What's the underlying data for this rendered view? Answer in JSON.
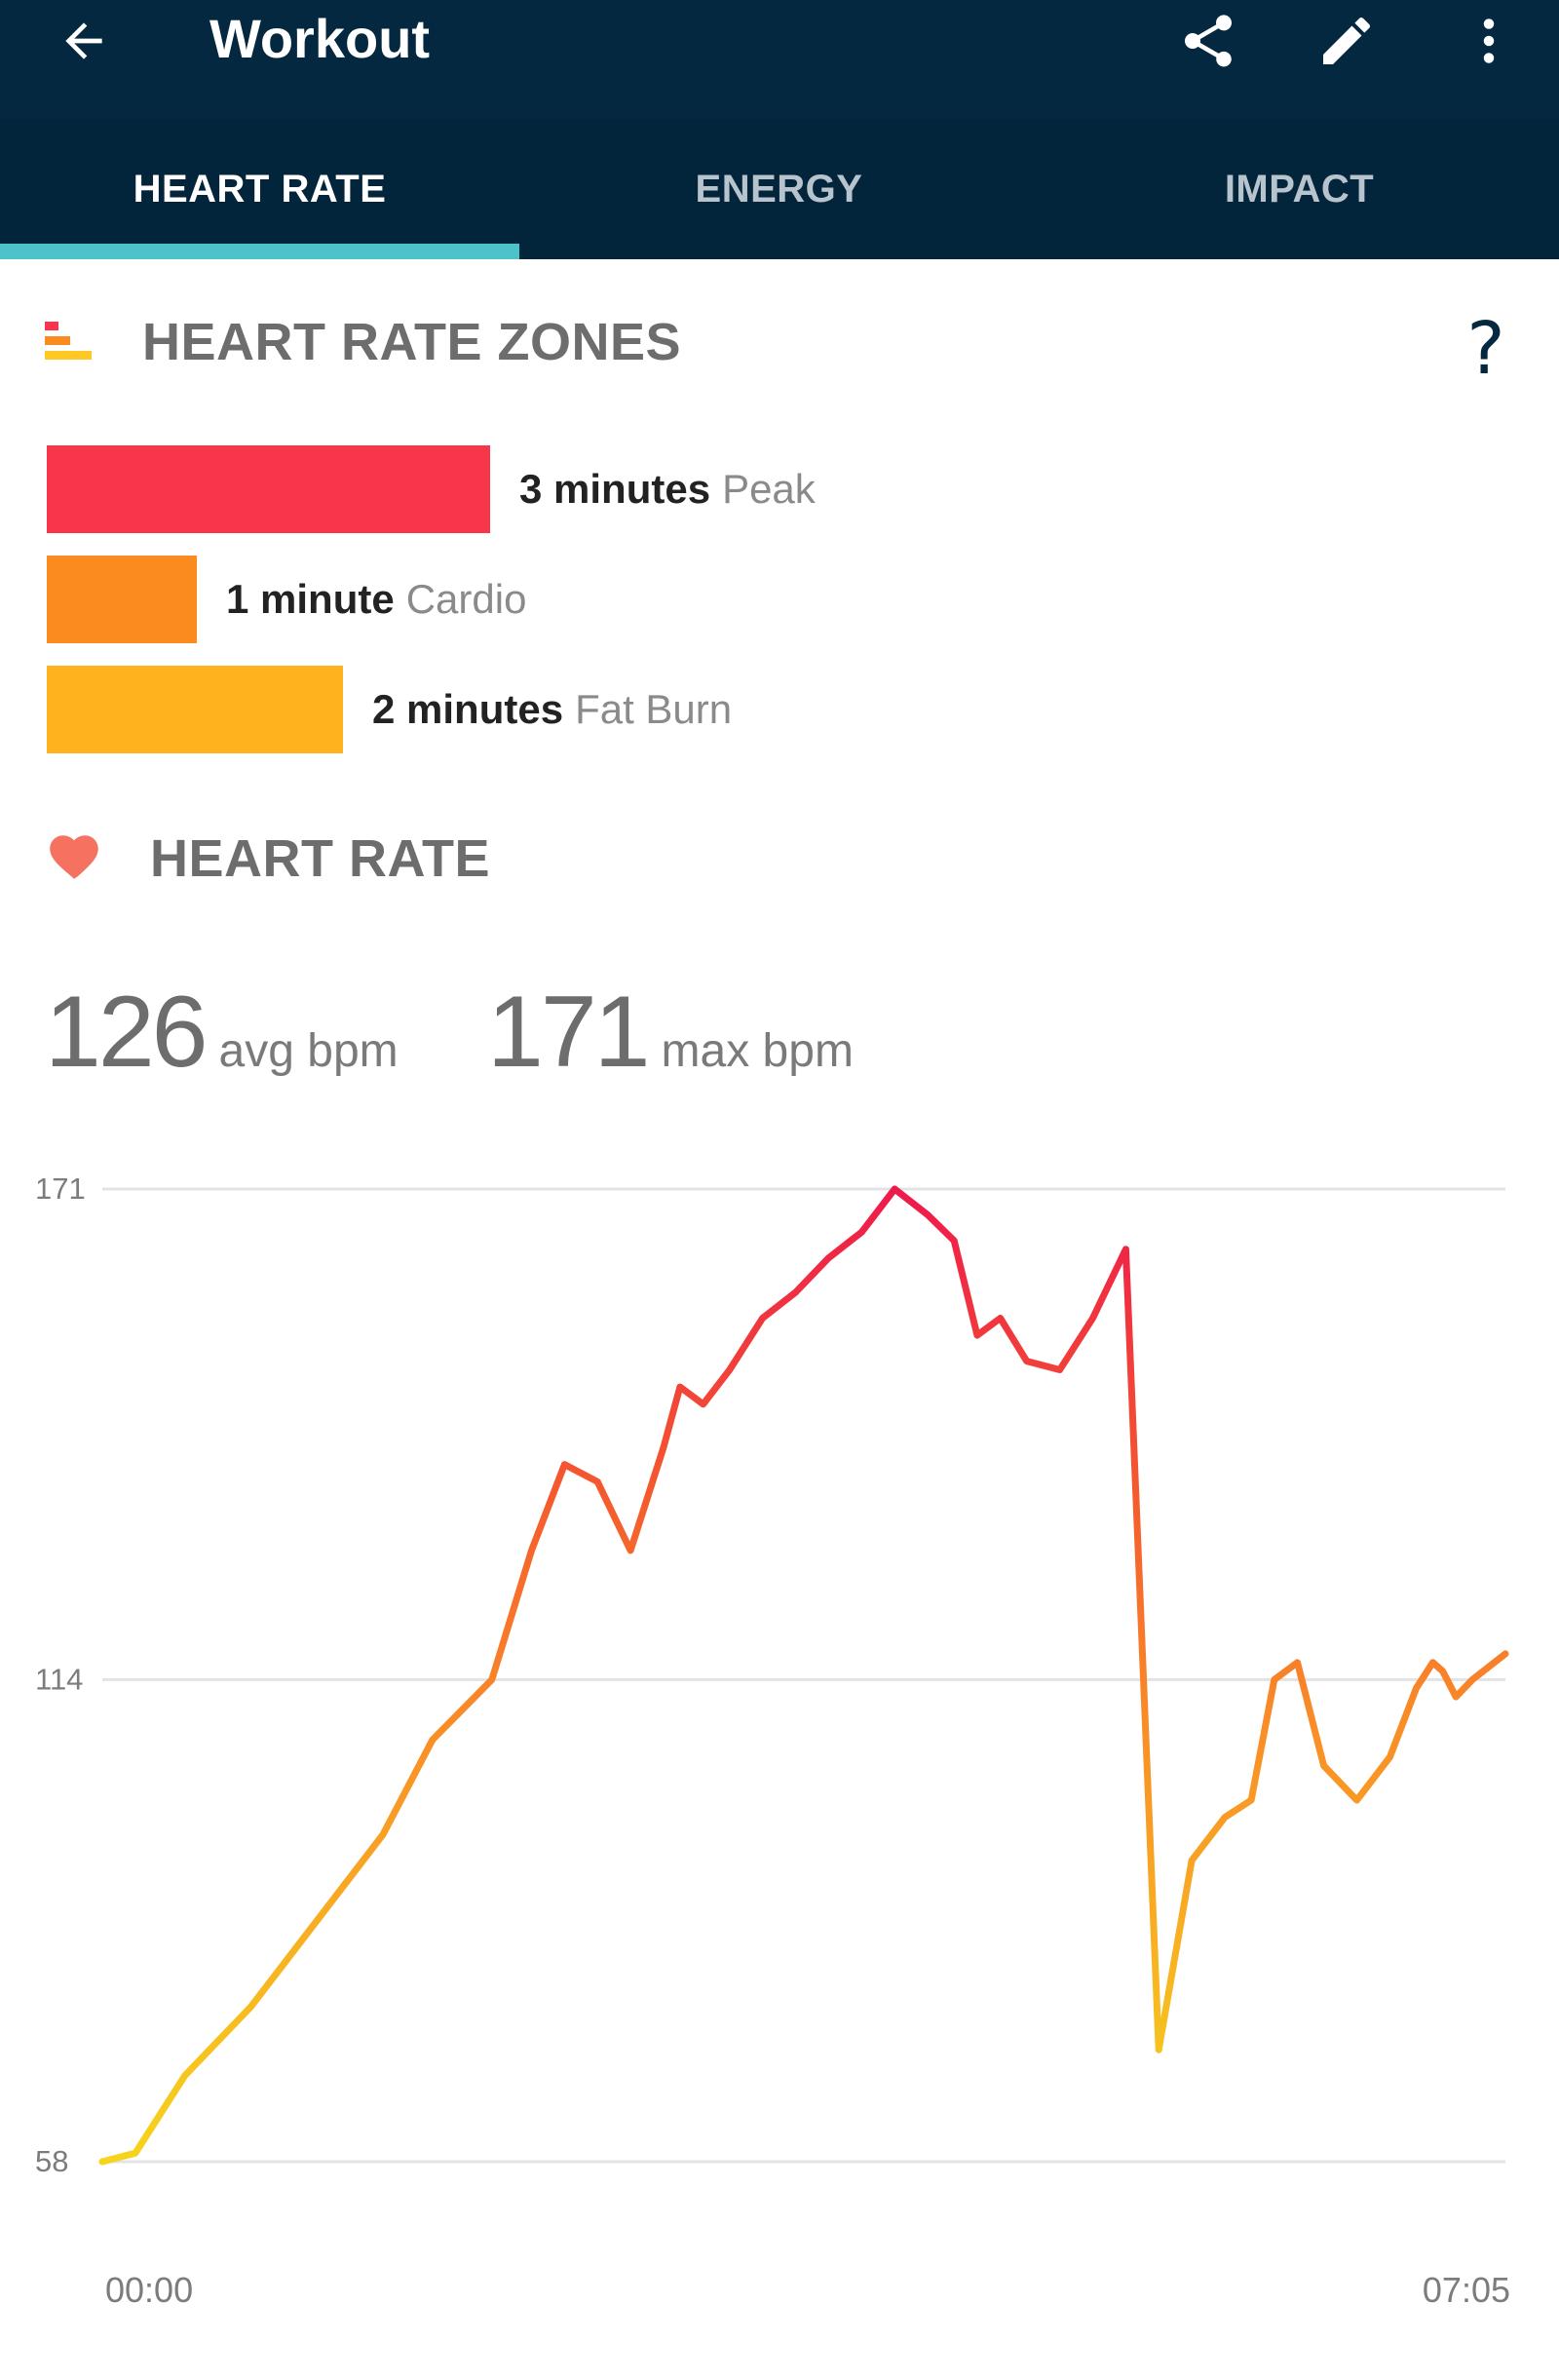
{
  "app_bar": {
    "title": "Workout",
    "back_icon": "arrow-left-icon",
    "share_icon": "share-icon",
    "edit_icon": "pencil-icon",
    "more_icon": "more-vert-icon",
    "background": "#042840"
  },
  "tabs": [
    {
      "label": "HEART RATE",
      "active": true
    },
    {
      "label": "ENERGY",
      "active": false
    },
    {
      "label": "IMPACT",
      "active": false
    }
  ],
  "zones_section": {
    "title": "HEART RATE ZONES",
    "icon": "zones-bars-icon",
    "help_icon": "question-mark-icon",
    "help_glyph": "?",
    "zones": [
      {
        "minutes_label": "3 minutes",
        "name": "Peak",
        "minutes": 3,
        "color": "#f93649"
      },
      {
        "minutes_label": "1 minute",
        "name": "Cardio",
        "minutes": 1,
        "color": "#fb8b1e"
      },
      {
        "minutes_label": "2 minutes",
        "name": "Fat Burn",
        "minutes": 2,
        "color": "#ffb21d"
      }
    ]
  },
  "heart_rate_section": {
    "title": "HEART RATE",
    "icon": "heart-icon",
    "avg_value": "126",
    "avg_label": "avg bpm",
    "max_value": "171",
    "max_label": "max bpm"
  },
  "chart_data": {
    "type": "line",
    "title": "",
    "xlabel": "",
    "ylabel": "",
    "x_ticks": [
      "00:00",
      "07:05"
    ],
    "y_ticks": [
      171,
      114,
      58
    ],
    "xlim": [
      0,
      425
    ],
    "ylim": [
      58,
      171
    ],
    "grid": true,
    "series": [
      {
        "x": [
          0,
          10,
          25,
          45,
          65,
          85,
          100,
          118,
          130,
          140,
          150,
          160,
          170,
          175,
          182,
          190,
          200,
          210,
          220,
          230,
          240,
          250,
          258,
          265,
          272,
          280,
          290,
          300,
          310,
          320,
          330,
          340,
          348,
          355,
          362,
          370,
          380,
          390,
          398,
          403,
          406,
          410,
          415,
          425
        ],
        "values": [
          58,
          59,
          68,
          76,
          86,
          96,
          107,
          114,
          129,
          139,
          137,
          129,
          141,
          148,
          146,
          150,
          156,
          159,
          163,
          166,
          171,
          168,
          165,
          154,
          156,
          151,
          150,
          156,
          164,
          71,
          93,
          98,
          100,
          114,
          116,
          104,
          100,
          105,
          113,
          116,
          115,
          112,
          114,
          117
        ]
      }
    ]
  }
}
